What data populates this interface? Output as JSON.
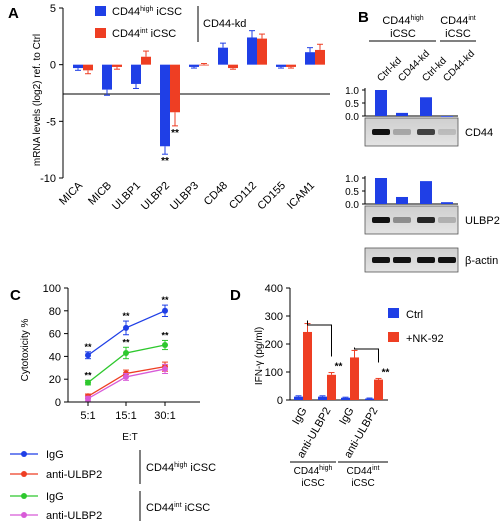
{
  "panels": {
    "A": "A",
    "B": "B",
    "C": "C",
    "D": "D"
  },
  "colors": {
    "blue": "#1f3fe6",
    "red": "#ee3e23",
    "green": "#2ec82e",
    "magenta": "#d85bd8"
  },
  "chart_data": [
    {
      "panel": "A",
      "type": "bar",
      "ylabel": "mRNA levels (log2) ref. to Ctrl",
      "ylim": [
        -10,
        5
      ],
      "yticks": [
        "5",
        "0",
        "-5",
        "-10"
      ],
      "categories": [
        "MICA",
        "MICB",
        "ULBP1",
        "ULBP2",
        "ULBP3",
        "CD48",
        "CD112",
        "CD155",
        "ICAM1"
      ],
      "series": [
        {
          "name_main": "CD44",
          "name_sup": "high",
          "name_rest": " iCSC",
          "color": "#1f3fe6",
          "values": [
            -0.3,
            -2.2,
            -1.7,
            -7.2,
            -0.2,
            1.5,
            2.4,
            -0.2,
            1.1
          ],
          "errors": [
            0.2,
            0.5,
            0.4,
            0.7,
            0.1,
            0.4,
            0.6,
            0.1,
            0.4
          ]
        },
        {
          "name_main": "CD44",
          "name_sup": "int",
          "name_rest": " iCSC",
          "color": "#ee3e23",
          "values": [
            -0.5,
            -0.2,
            0.7,
            -4.2,
            0.0,
            -0.3,
            2.3,
            -0.2,
            1.3
          ],
          "errors": [
            0.3,
            0.2,
            0.5,
            1.2,
            0.1,
            0.1,
            0.4,
            0.1,
            0.5
          ]
        }
      ],
      "legend_group_label": "CD44-kd",
      "annotations": [
        {
          "category": "ULBP2",
          "series": 0,
          "text": "**"
        },
        {
          "category": "ULBP2",
          "series": 1,
          "text": "**"
        }
      ]
    },
    {
      "panel": "B",
      "type": "bar",
      "header_groups": [
        {
          "main": "CD44",
          "sup": "high",
          "second": "iCSC"
        },
        {
          "main": "CD44",
          "sup": "int",
          "second": "iCSC"
        }
      ],
      "lanes": [
        "Ctrl-kd",
        "CD44-kd",
        "Ctrl-kd",
        "CD44-kd"
      ],
      "blots": [
        {
          "label": "CD44",
          "yticks": [
            "1.0",
            "0.5",
            "0.0"
          ],
          "values": [
            1.0,
            0.12,
            0.72,
            0.0
          ]
        },
        {
          "label": "ULBP2",
          "yticks": [
            "1.0",
            "0.5",
            "0.0"
          ],
          "values": [
            1.0,
            0.27,
            0.88,
            0.07
          ]
        },
        {
          "label": "β-actin"
        }
      ]
    },
    {
      "panel": "C",
      "type": "line",
      "ylabel": "Cytotoxicity %",
      "xlabel": "E:T",
      "ylim": [
        0,
        100
      ],
      "yticks": [
        "0",
        "20",
        "40",
        "60",
        "80",
        "100"
      ],
      "categories": [
        "5:1",
        "15:1",
        "30:1"
      ],
      "series": [
        {
          "name": "IgG",
          "group": "high",
          "color": "#1f3fe6",
          "values": [
            41,
            65,
            80
          ],
          "errors": [
            3,
            6,
            5
          ]
        },
        {
          "name": "anti-ULBP2",
          "group": "high",
          "color": "#ee3e23",
          "values": [
            5,
            25,
            31
          ],
          "errors": [
            2,
            3,
            4
          ]
        },
        {
          "name": "IgG",
          "group": "int",
          "color": "#2ec82e",
          "values": [
            17,
            43,
            50
          ],
          "errors": [
            2,
            5,
            4
          ]
        },
        {
          "name": "anti-ULBP2",
          "group": "int",
          "color": "#d85bd8",
          "values": [
            3,
            22,
            29
          ],
          "errors": [
            2,
            3,
            4
          ]
        }
      ],
      "legend_groups": [
        {
          "main": "CD44",
          "sup": "high",
          "rest": " iCSC"
        },
        {
          "main": "CD44",
          "sup": "int",
          "rest": " iCSC"
        }
      ],
      "annotations": [
        {
          "series": 0,
          "point": 0,
          "text": "**"
        },
        {
          "series": 0,
          "point": 1,
          "text": "**"
        },
        {
          "series": 0,
          "point": 2,
          "text": "**"
        },
        {
          "series": 2,
          "point": 0,
          "text": "**"
        },
        {
          "series": 2,
          "point": 1,
          "text": "**"
        },
        {
          "series": 2,
          "point": 2,
          "text": "**"
        }
      ]
    },
    {
      "panel": "D",
      "type": "bar",
      "ylabel": "IFN-γ (pg/ml)",
      "ylim": [
        0,
        400
      ],
      "yticks": [
        "0",
        "100",
        "200",
        "300",
        "400"
      ],
      "categories": [
        "IgG",
        "anti-ULBP2",
        "IgG",
        "anti-ULBP2"
      ],
      "series": [
        {
          "name": "Ctrl",
          "color": "#1f3fe6",
          "values": [
            12,
            12,
            8,
            5
          ],
          "errors": [
            3,
            3,
            2,
            2
          ]
        },
        {
          "name": "+NK-92",
          "color": "#ee3e23",
          "values": [
            243,
            90,
            152,
            73
          ],
          "errors": [
            30,
            8,
            25,
            4
          ]
        }
      ],
      "groups": [
        {
          "main": "CD44",
          "sup": "high",
          "second": "iCSC"
        },
        {
          "main": "CD44",
          "sup": "int",
          "second": "iCSC"
        }
      ],
      "annotations": [
        {
          "category": 1,
          "text": "**"
        },
        {
          "category": 3,
          "text": "**"
        }
      ]
    }
  ]
}
